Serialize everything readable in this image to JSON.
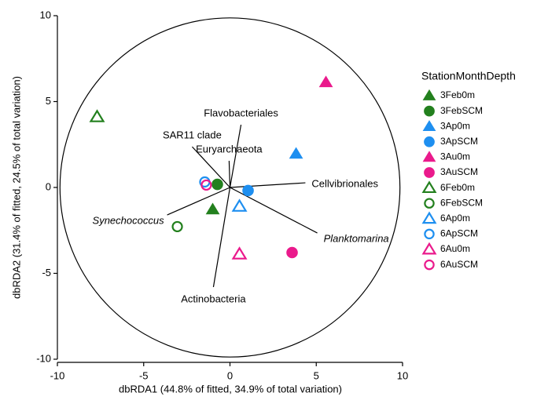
{
  "chart_data": {
    "type": "scatter",
    "xlabel": "dbRDA1 (44.8% of fitted, 34.9% of total variation)",
    "ylabel": "dbRDA2 (31.4% of fitted, 24.5% of total variation)",
    "xlim": [
      -10,
      10
    ],
    "ylim": [
      -10,
      10
    ],
    "xticks": [
      -10,
      -5,
      0,
      5,
      10
    ],
    "yticks": [
      -10,
      -5,
      0,
      5,
      10
    ],
    "legend_title": "StationMonthDepth",
    "legend_position": "right",
    "circle_radius": 9.85,
    "series": [
      {
        "name": "3Feb0m",
        "color": "#23801e",
        "marker": "triangle",
        "filled": true,
        "x": [
          -1.0
        ],
        "values": [
          -1.28
        ]
      },
      {
        "name": "3FebSCM",
        "color": "#23801e",
        "marker": "circle",
        "filled": true,
        "x": [
          -0.73
        ],
        "values": [
          0.18
        ]
      },
      {
        "name": "3Ap0m",
        "color": "#1e8ff0",
        "marker": "triangle",
        "filled": true,
        "x": [
          3.83
        ],
        "values": [
          1.96
        ]
      },
      {
        "name": "3ApSCM",
        "color": "#1e8ff0",
        "marker": "circle",
        "filled": true,
        "x": [
          1.05
        ],
        "values": [
          -0.18
        ]
      },
      {
        "name": "3Au0m",
        "color": "#ea1a8c",
        "marker": "triangle",
        "filled": true,
        "x": [
          5.56
        ],
        "values": [
          6.12
        ]
      },
      {
        "name": "3AuSCM",
        "color": "#ea1a8c",
        "marker": "circle",
        "filled": true,
        "x": [
          3.6
        ],
        "values": [
          -3.79
        ]
      },
      {
        "name": "6Feb0m",
        "color": "#23801e",
        "marker": "triangle",
        "filled": false,
        "x": [
          -7.7
        ],
        "values": [
          4.11
        ]
      },
      {
        "name": "6FebSCM",
        "color": "#23801e",
        "marker": "circle",
        "filled": false,
        "x": [
          -3.05
        ],
        "values": [
          -2.28
        ]
      },
      {
        "name": "6Ap0m",
        "color": "#1e8ff0",
        "marker": "triangle",
        "filled": false,
        "x": [
          0.55
        ],
        "values": [
          -1.1
        ]
      },
      {
        "name": "6ApSCM",
        "color": "#1e8ff0",
        "marker": "circle",
        "filled": false,
        "x": [
          -1.46
        ],
        "values": [
          0.32
        ]
      },
      {
        "name": "6Au0m",
        "color": "#ea1a8c",
        "marker": "triangle",
        "filled": false,
        "x": [
          0.55
        ],
        "values": [
          -3.88
        ]
      },
      {
        "name": "6AuSCM",
        "color": "#ea1a8c",
        "marker": "circle",
        "filled": false,
        "x": [
          -1.37
        ],
        "values": [
          0.14
        ]
      }
    ],
    "vectors": [
      {
        "name": "Flavobacteriales",
        "italic": false,
        "x": 0.64,
        "y": 3.65
      },
      {
        "name": "SAR11 clade",
        "italic": false,
        "x": -2.19,
        "y": 2.37
      },
      {
        "name": "Euryarchaeota",
        "italic": false,
        "x": -0.05,
        "y": 1.55
      },
      {
        "name": "Cellvibrionales",
        "italic": false,
        "x": 4.37,
        "y": 0.27
      },
      {
        "name": "Synechococcus",
        "italic": true,
        "x": -3.64,
        "y": -1.6
      },
      {
        "name": "Planktomarina",
        "italic": true,
        "x": 5.06,
        "y": -2.65
      },
      {
        "name": "Actinobacteria",
        "italic": false,
        "x": -0.96,
        "y": -5.8
      }
    ]
  }
}
